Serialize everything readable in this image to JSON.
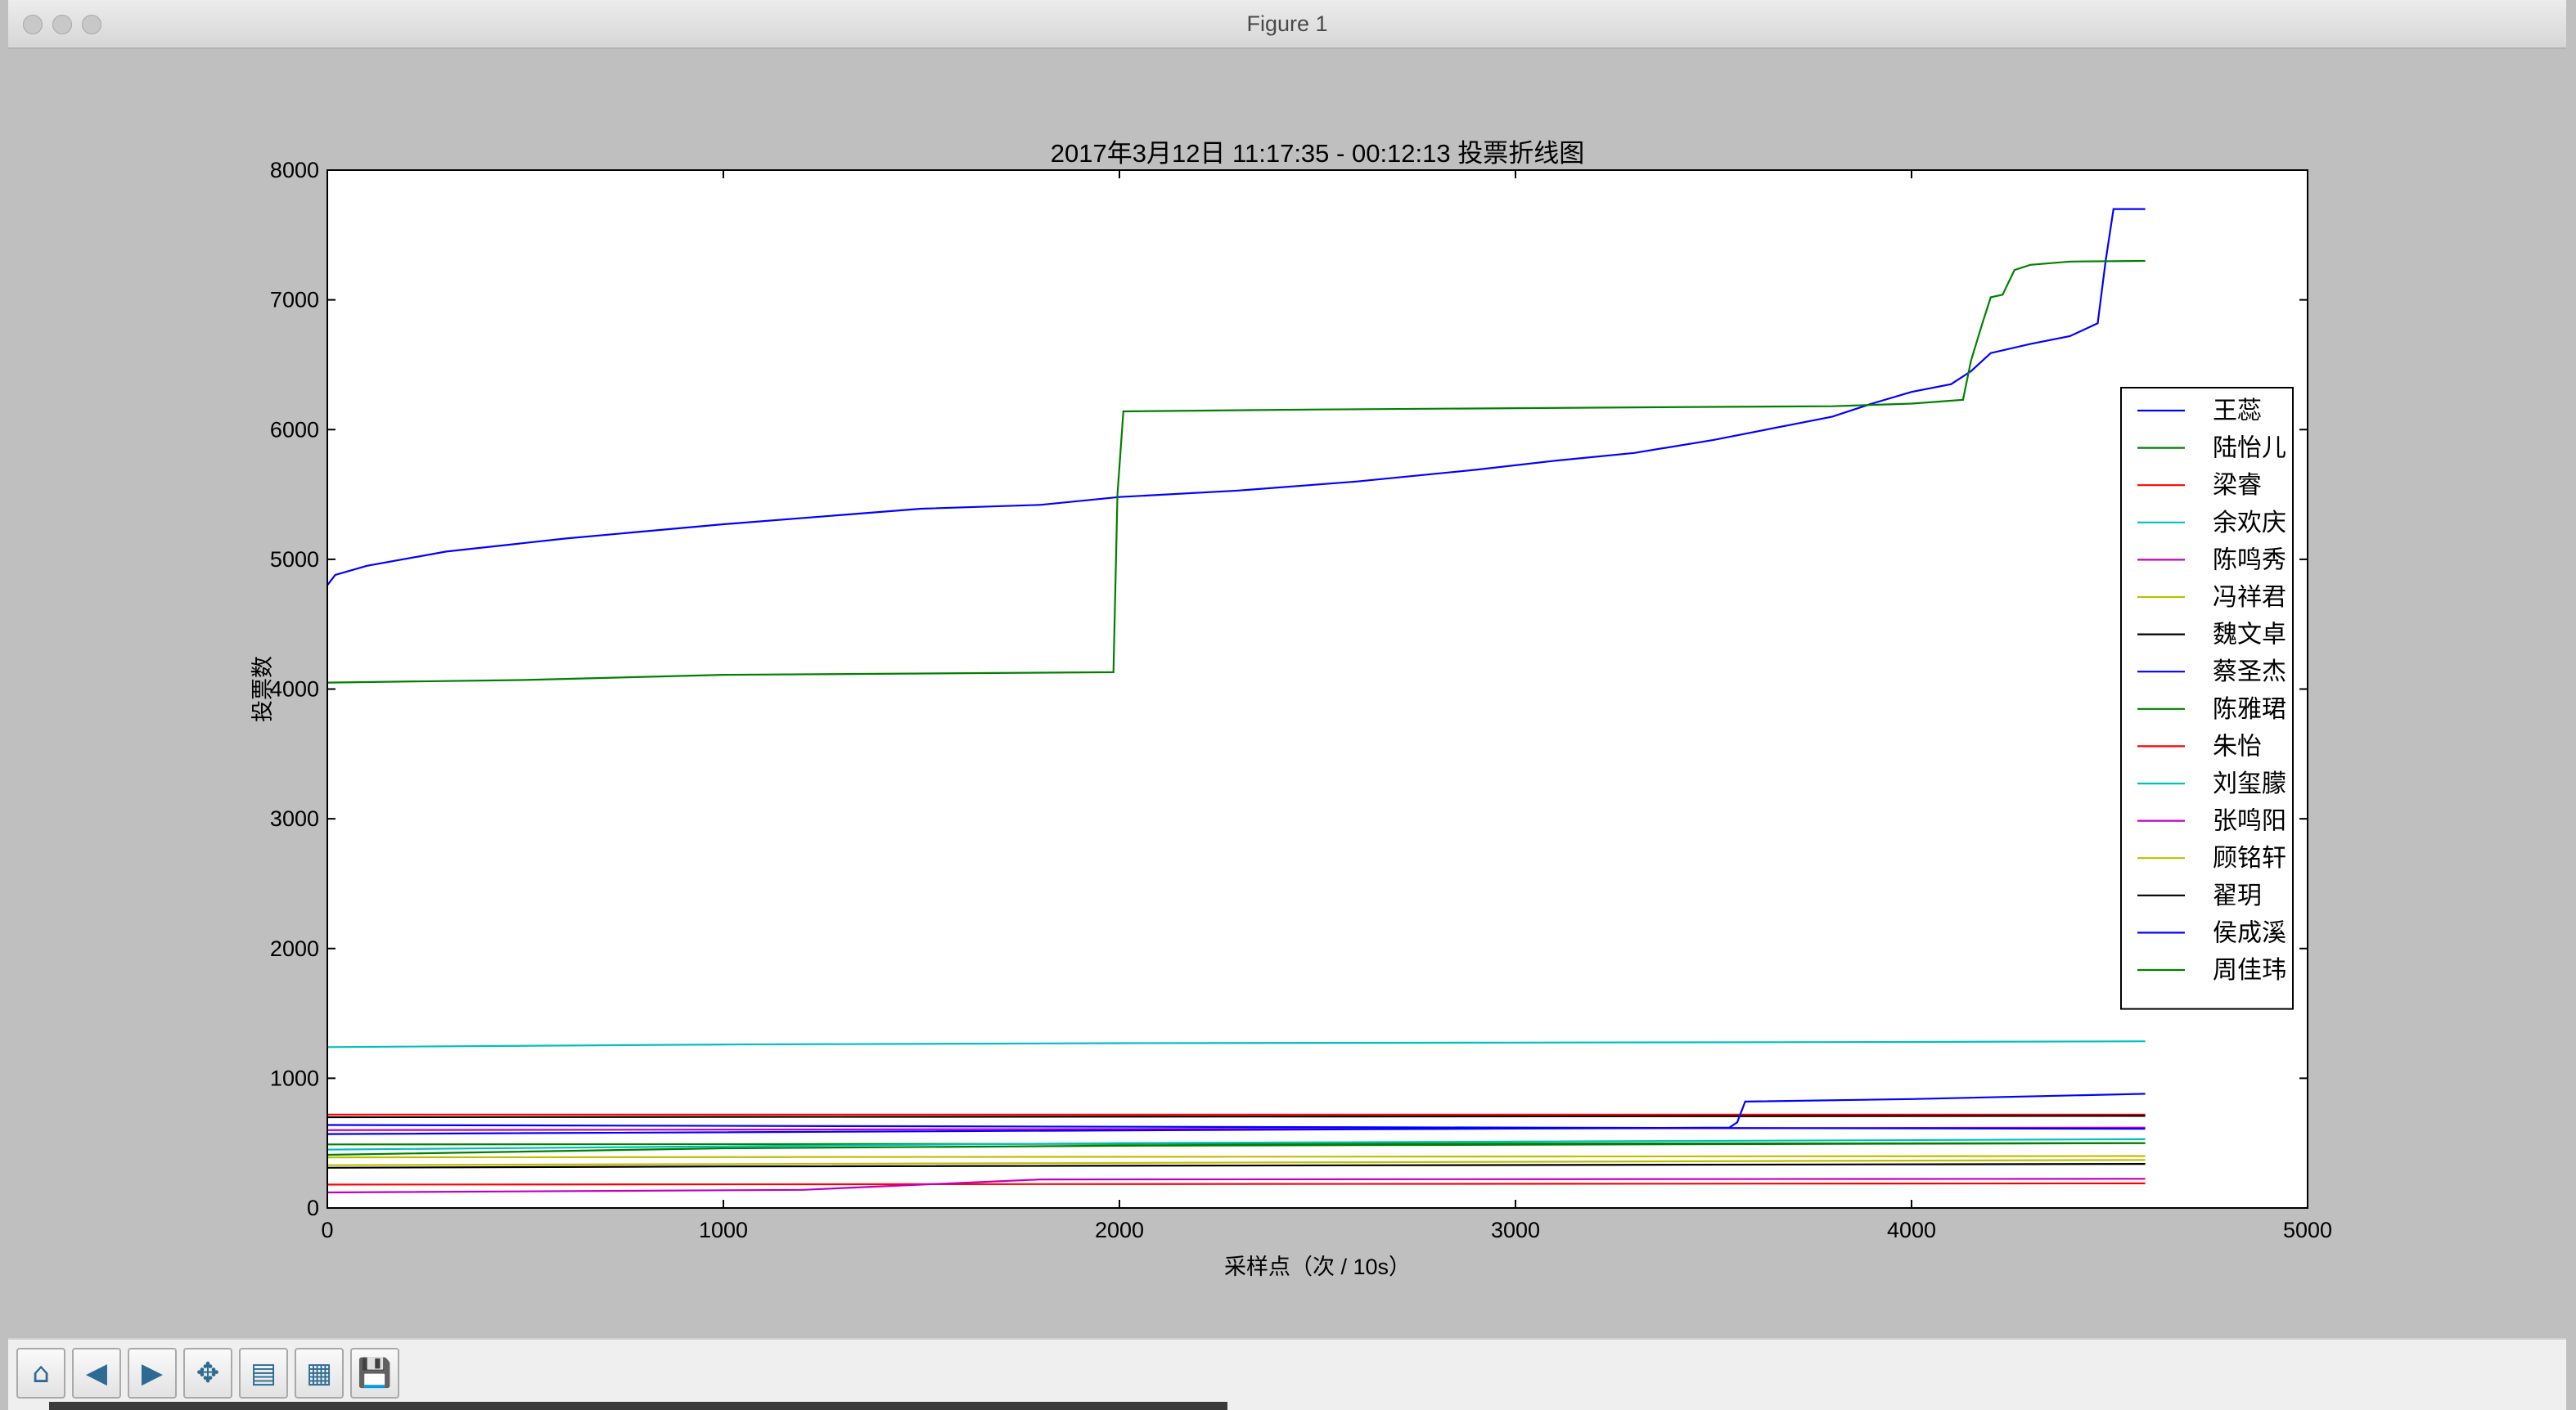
{
  "window": {
    "title": "Figure 1"
  },
  "toolbar": {
    "buttons": [
      {
        "name": "home-button",
        "icon": "home-icon",
        "glyph": "⌂"
      },
      {
        "name": "back-button",
        "icon": "back-arrow-icon",
        "glyph": "◀"
      },
      {
        "name": "forward-button",
        "icon": "forward-arrow-icon",
        "glyph": "▶"
      },
      {
        "name": "pan-button",
        "icon": "pan-icon",
        "glyph": "✥"
      },
      {
        "name": "zoom-button",
        "icon": "zoom-rect-icon",
        "glyph": "▤"
      },
      {
        "name": "subplots-button",
        "icon": "subplots-config-icon",
        "glyph": "▦"
      },
      {
        "name": "save-button",
        "icon": "save-disk-icon",
        "glyph": "💾"
      }
    ]
  },
  "chart_data": {
    "type": "line",
    "title": "2017年3月12日 11:17:35 - 00:12:13 投票折线图",
    "xlabel": "采样点（次 / 10s）",
    "ylabel": "投票数",
    "xlim": [
      0,
      5000
    ],
    "ylim": [
      0,
      8000
    ],
    "xticks": [
      0,
      1000,
      2000,
      3000,
      4000,
      5000
    ],
    "yticks": [
      0,
      1000,
      2000,
      3000,
      4000,
      5000,
      6000,
      7000,
      8000
    ],
    "grid": false,
    "legend_position": "right",
    "series": [
      {
        "name": "王蕊",
        "color": "#0000ff",
        "x": [
          0,
          20,
          100,
          300,
          600,
          1000,
          1500,
          1800,
          2000,
          2300,
          2600,
          2900,
          3100,
          3300,
          3500,
          3700,
          3800,
          3900,
          4000,
          4100,
          4150,
          4200,
          4300,
          4400,
          4470,
          4490,
          4510,
          4590
        ],
        "y": [
          4800,
          4880,
          4950,
          5060,
          5160,
          5270,
          5390,
          5420,
          5480,
          5530,
          5600,
          5690,
          5760,
          5820,
          5920,
          6040,
          6100,
          6200,
          6290,
          6350,
          6450,
          6590,
          6660,
          6720,
          6820,
          7300,
          7700,
          7700
        ]
      },
      {
        "name": "陆怡儿",
        "color": "#008000",
        "x": [
          0,
          500,
          1000,
          1500,
          1985,
          1995,
          2010,
          2500,
          3000,
          3500,
          3800,
          4000,
          4130,
          4150,
          4180,
          4200,
          4230,
          4260,
          4300,
          4400,
          4590
        ],
        "y": [
          4050,
          4070,
          4110,
          4120,
          4130,
          5500,
          6140,
          6155,
          6165,
          6175,
          6180,
          6200,
          6230,
          6530,
          6830,
          7020,
          7040,
          7230,
          7270,
          7295,
          7300
        ]
      },
      {
        "name": "梁睿",
        "color": "#ff0000",
        "x": [
          0,
          4590
        ],
        "y": [
          720,
          720
        ]
      },
      {
        "name": "余欢庆",
        "color": "#00bfbf",
        "x": [
          0,
          1000,
          2000,
          3000,
          4000,
          4590
        ],
        "y": [
          1240,
          1260,
          1270,
          1275,
          1280,
          1285
        ]
      },
      {
        "name": "陈鸣秀",
        "color": "#bf00bf",
        "x": [
          0,
          4590
        ],
        "y": [
          600,
          620
        ]
      },
      {
        "name": "冯祥君",
        "color": "#bfbf00",
        "x": [
          0,
          4590
        ],
        "y": [
          330,
          370
        ]
      },
      {
        "name": "魏文卓",
        "color": "#000000",
        "x": [
          0,
          4590
        ],
        "y": [
          700,
          710
        ]
      },
      {
        "name": "蔡圣杰",
        "color": "#0000ff",
        "x": [
          0,
          3540,
          3560,
          3580,
          4000,
          4590
        ],
        "y": [
          570,
          620,
          660,
          820,
          840,
          880
        ]
      },
      {
        "name": "陈雅珺",
        "color": "#008000",
        "x": [
          0,
          4590
        ],
        "y": [
          490,
          500
        ]
      },
      {
        "name": "朱怡",
        "color": "#ff0000",
        "x": [
          0,
          4590
        ],
        "y": [
          180,
          190
        ]
      },
      {
        "name": "刘玺朦",
        "color": "#00bfbf",
        "x": [
          0,
          2000,
          4590
        ],
        "y": [
          450,
          500,
          530
        ]
      },
      {
        "name": "张鸣阳",
        "color": "#bf00bf",
        "x": [
          0,
          1200,
          1800,
          4590
        ],
        "y": [
          120,
          140,
          220,
          225
        ]
      },
      {
        "name": "顾铭轩",
        "color": "#bfbf00",
        "x": [
          0,
          4590
        ],
        "y": [
          390,
          400
        ]
      },
      {
        "name": "翟玥",
        "color": "#000000",
        "x": [
          0,
          1000,
          4590
        ],
        "y": [
          310,
          320,
          340
        ]
      },
      {
        "name": "侯成溪",
        "color": "#0000ff",
        "x": [
          0,
          3000,
          4590
        ],
        "y": [
          640,
          620,
          610
        ]
      },
      {
        "name": "周佳玮",
        "color": "#008000",
        "x": [
          0,
          1000,
          2000,
          4590
        ],
        "y": [
          410,
          460,
          480,
          500
        ]
      }
    ]
  }
}
